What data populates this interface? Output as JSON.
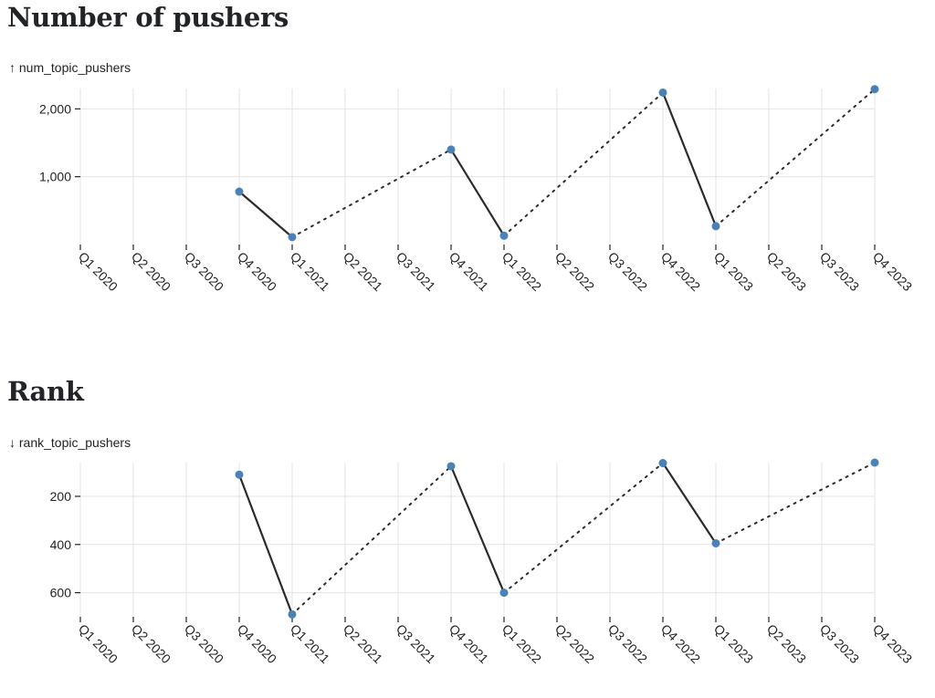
{
  "sections": [
    {
      "title": "Number of pushers",
      "axis_caption": "↑ num_topic_pushers"
    },
    {
      "title": "Rank",
      "axis_caption": "↓ rank_topic_pushers"
    }
  ],
  "colors": {
    "point": "#4b82b6",
    "line": "#2b2b2b",
    "grid": "#e3e3e3"
  },
  "chart_data": [
    {
      "type": "line",
      "title": "Number of pushers",
      "ylabel": "↑ num_topic_pushers",
      "categories": [
        "Q1 2020",
        "Q2 2020",
        "Q3 2020",
        "Q4 2020",
        "Q1 2021",
        "Q2 2021",
        "Q3 2021",
        "Q4 2021",
        "Q1 2022",
        "Q2 2022",
        "Q3 2022",
        "Q4 2022",
        "Q1 2023",
        "Q2 2023",
        "Q3 2023",
        "Q4 2023"
      ],
      "points": [
        {
          "x": "Q4 2020",
          "y": 780
        },
        {
          "x": "Q1 2021",
          "y": 110
        },
        {
          "x": "Q4 2021",
          "y": 1400
        },
        {
          "x": "Q1 2022",
          "y": 130
        },
        {
          "x": "Q4 2022",
          "y": 2240
        },
        {
          "x": "Q1 2023",
          "y": 270
        },
        {
          "x": "Q4 2023",
          "y": 2290
        }
      ],
      "solid_segments": [
        [
          "Q4 2020",
          "Q1 2021"
        ],
        [
          "Q4 2021",
          "Q1 2022"
        ],
        [
          "Q4 2022",
          "Q1 2023"
        ]
      ],
      "dotted_segments": [
        [
          "Q1 2021",
          "Q4 2021"
        ],
        [
          "Q1 2022",
          "Q4 2022"
        ],
        [
          "Q1 2023",
          "Q4 2023"
        ]
      ],
      "y_ticks": [
        1000,
        2000
      ],
      "y_tick_labels": [
        "1,000",
        "2,000"
      ],
      "ylim": [
        0,
        2300
      ],
      "y_reversed": false,
      "grid": true
    },
    {
      "type": "line",
      "title": "Rank",
      "ylabel": "↓ rank_topic_pushers",
      "categories": [
        "Q1 2020",
        "Q2 2020",
        "Q3 2020",
        "Q4 2020",
        "Q1 2021",
        "Q2 2021",
        "Q3 2021",
        "Q4 2021",
        "Q1 2022",
        "Q2 2022",
        "Q3 2022",
        "Q4 2022",
        "Q1 2023",
        "Q2 2023",
        "Q3 2023",
        "Q4 2023"
      ],
      "points": [
        {
          "x": "Q4 2020",
          "y": 110
        },
        {
          "x": "Q1 2021",
          "y": 690
        },
        {
          "x": "Q4 2021",
          "y": 75
        },
        {
          "x": "Q1 2022",
          "y": 600
        },
        {
          "x": "Q4 2022",
          "y": 62
        },
        {
          "x": "Q1 2023",
          "y": 395
        },
        {
          "x": "Q4 2023",
          "y": 60
        }
      ],
      "solid_segments": [
        [
          "Q4 2020",
          "Q1 2021"
        ],
        [
          "Q4 2021",
          "Q1 2022"
        ],
        [
          "Q4 2022",
          "Q1 2023"
        ]
      ],
      "dotted_segments": [
        [
          "Q1 2021",
          "Q4 2021"
        ],
        [
          "Q1 2022",
          "Q4 2022"
        ],
        [
          "Q1 2023",
          "Q4 2023"
        ]
      ],
      "y_ticks": [
        200,
        400,
        600
      ],
      "y_tick_labels": [
        "200",
        "400",
        "600"
      ],
      "ylim": [
        60,
        700
      ],
      "y_reversed": true,
      "grid": true
    }
  ]
}
